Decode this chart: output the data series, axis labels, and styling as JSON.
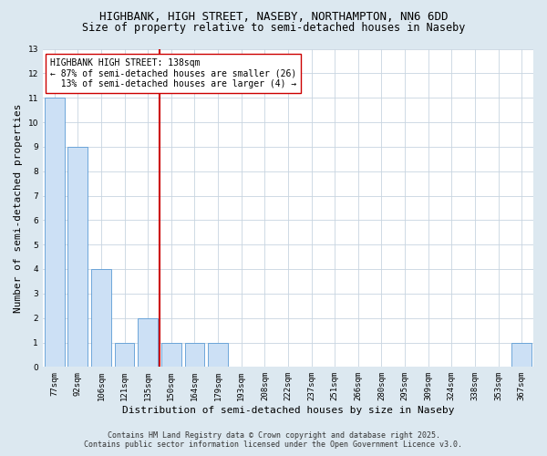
{
  "title_line1": "HIGHBANK, HIGH STREET, NASEBY, NORTHAMPTON, NN6 6DD",
  "title_line2": "Size of property relative to semi-detached houses in Naseby",
  "xlabel": "Distribution of semi-detached houses by size in Naseby",
  "ylabel": "Number of semi-detached properties",
  "categories": [
    "77sqm",
    "92sqm",
    "106sqm",
    "121sqm",
    "135sqm",
    "150sqm",
    "164sqm",
    "179sqm",
    "193sqm",
    "208sqm",
    "222sqm",
    "237sqm",
    "251sqm",
    "266sqm",
    "280sqm",
    "295sqm",
    "309sqm",
    "324sqm",
    "338sqm",
    "353sqm",
    "367sqm"
  ],
  "values": [
    11,
    9,
    4,
    1,
    2,
    1,
    1,
    1,
    0,
    0,
    0,
    0,
    0,
    0,
    0,
    0,
    0,
    0,
    0,
    0,
    1
  ],
  "bar_color": "#cce0f5",
  "bar_edgecolor": "#5b9bd5",
  "vline_color": "#cc0000",
  "annotation_text": "HIGHBANK HIGH STREET: 138sqm\n← 87% of semi-detached houses are smaller (26)\n  13% of semi-detached houses are larger (4) →",
  "annotation_box_edgecolor": "#cc0000",
  "annotation_box_facecolor": "#ffffff",
  "ylim": [
    0,
    13
  ],
  "yticks": [
    0,
    1,
    2,
    3,
    4,
    5,
    6,
    7,
    8,
    9,
    10,
    11,
    12,
    13
  ],
  "grid_color": "#c8d4e0",
  "background_color": "#dce8f0",
  "plot_bg_color": "#ffffff",
  "footer_line1": "Contains HM Land Registry data © Crown copyright and database right 2025.",
  "footer_line2": "Contains public sector information licensed under the Open Government Licence v3.0.",
  "title_fontsize": 9,
  "subtitle_fontsize": 8.5,
  "axis_label_fontsize": 8,
  "tick_fontsize": 6.5,
  "annotation_fontsize": 7,
  "footer_fontsize": 6
}
